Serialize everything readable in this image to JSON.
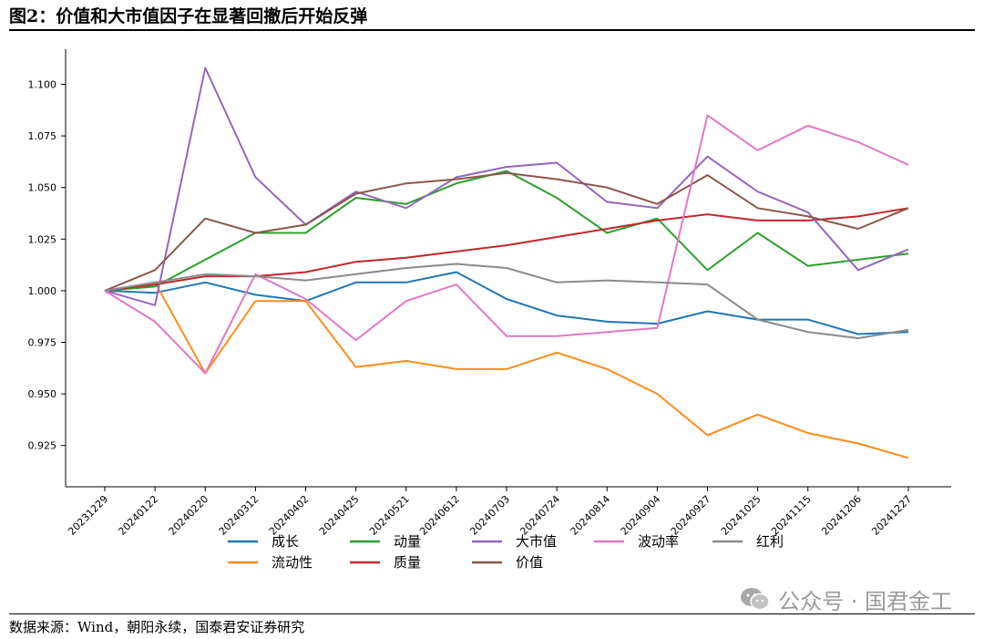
{
  "page": {
    "title": "图2：价值和大市值因子在显著回撤后开始反弹",
    "source": "数据来源：Wind，朝阳永续，国泰君安证券研究",
    "watermark": "公众号 · 国君金工",
    "watermark_icon": "wechat-icon"
  },
  "chart_data": {
    "type": "line",
    "title": "",
    "xlabel": "",
    "ylabel": "",
    "ylim": [
      0.905,
      1.117
    ],
    "yticks": [
      0.925,
      0.95,
      0.975,
      1.0,
      1.025,
      1.05,
      1.075,
      1.1
    ],
    "ytick_labels": [
      "0.925",
      "0.950",
      "0.975",
      "1.000",
      "1.025",
      "1.050",
      "1.075",
      "1.100"
    ],
    "x": [
      "20231229",
      "20240122",
      "20240220",
      "20240312",
      "20240402",
      "20240425",
      "20240521",
      "20240612",
      "20240703",
      "20240724",
      "20240814",
      "20240904",
      "20240927",
      "20241025",
      "20241115",
      "20241206",
      "20241227"
    ],
    "grid": false,
    "legend": "bottom",
    "series": [
      {
        "name": "成长",
        "color": "#1f77b4",
        "values": [
          1.0,
          0.999,
          1.004,
          0.998,
          0.995,
          1.004,
          1.004,
          1.009,
          0.996,
          0.988,
          0.985,
          0.984,
          0.99,
          0.986,
          0.986,
          0.979,
          0.98
        ]
      },
      {
        "name": "流动性",
        "color": "#ff8c1a",
        "values": [
          1.0,
          1.004,
          0.96,
          0.995,
          0.995,
          0.963,
          0.966,
          0.962,
          0.962,
          0.97,
          0.962,
          0.95,
          0.93,
          0.94,
          0.931,
          0.926,
          0.919
        ]
      },
      {
        "name": "动量",
        "color": "#2ca02c",
        "values": [
          1.0,
          1.002,
          1.015,
          1.028,
          1.028,
          1.045,
          1.042,
          1.052,
          1.058,
          1.045,
          1.028,
          1.035,
          1.01,
          1.028,
          1.012,
          1.015,
          1.018
        ]
      },
      {
        "name": "质量",
        "color": "#c0282b",
        "values": [
          1.0,
          1.003,
          1.007,
          1.007,
          1.009,
          1.014,
          1.016,
          1.019,
          1.022,
          1.026,
          1.03,
          1.034,
          1.037,
          1.034,
          1.034,
          1.036,
          1.04
        ]
      },
      {
        "name": "大市值",
        "color": "#9467bd",
        "values": [
          1.0,
          0.993,
          1.108,
          1.055,
          1.032,
          1.048,
          1.04,
          1.055,
          1.06,
          1.062,
          1.043,
          1.04,
          1.065,
          1.048,
          1.038,
          1.01,
          1.02
        ]
      },
      {
        "name": "价值",
        "color": "#8c564b",
        "values": [
          1.0,
          1.01,
          1.035,
          1.028,
          1.032,
          1.047,
          1.052,
          1.054,
          1.057,
          1.054,
          1.05,
          1.042,
          1.056,
          1.04,
          1.036,
          1.03,
          1.04
        ]
      },
      {
        "name": "波动率",
        "color": "#e377c2",
        "values": [
          1.0,
          0.985,
          0.96,
          1.008,
          0.996,
          0.976,
          0.995,
          1.003,
          0.978,
          0.978,
          0.98,
          0.982,
          1.085,
          1.068,
          1.08,
          1.072,
          1.061
        ]
      },
      {
        "name": "红利",
        "color": "#8a8a8a",
        "values": [
          1.0,
          1.004,
          1.008,
          1.007,
          1.005,
          1.008,
          1.011,
          1.013,
          1.011,
          1.004,
          1.005,
          1.004,
          1.003,
          0.986,
          0.98,
          0.977,
          0.981
        ]
      }
    ],
    "legend_order": [
      "成长",
      "动量",
      "大市值",
      "波动率",
      "红利",
      "流动性",
      "质量",
      "价值"
    ]
  }
}
